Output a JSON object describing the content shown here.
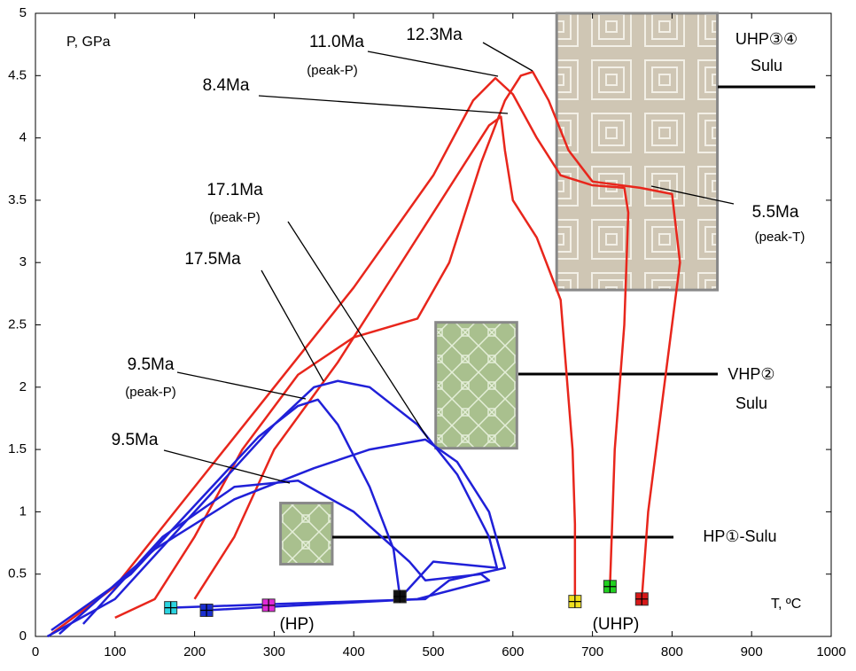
{
  "chart_data": {
    "type": "line",
    "ylabel": "P, GPa",
    "xlabel": "T, ºC",
    "xlim": [
      0,
      1000
    ],
    "xticks": [
      0,
      100,
      200,
      300,
      400,
      500,
      600,
      700,
      800,
      900,
      1000
    ],
    "ylim": [
      0,
      5
    ],
    "yticks": [
      0,
      0.5,
      1,
      1.5,
      2,
      2.5,
      3,
      3.5,
      4,
      4.5,
      5
    ],
    "series": [
      {
        "color": "#e8261c",
        "x": [
          20,
          100,
          200,
          300,
          400,
          500,
          550,
          578,
          600,
          630,
          660,
          700,
          740,
          745,
          740,
          728,
          722
        ],
        "values": [
          0.02,
          0.4,
          1.2,
          2.0,
          2.8,
          3.7,
          4.3,
          4.48,
          4.35,
          4.0,
          3.7,
          3.62,
          3.6,
          3.4,
          2.5,
          1.5,
          0.4
        ]
      },
      {
        "color": "#e8261c",
        "x": [
          100,
          150,
          200,
          260,
          330,
          400,
          480,
          520,
          560,
          590,
          610,
          625,
          645,
          670,
          700,
          760,
          800,
          810,
          790,
          770,
          762
        ],
        "values": [
          0.15,
          0.3,
          0.8,
          1.5,
          2.1,
          2.4,
          2.55,
          3.0,
          3.8,
          4.3,
          4.5,
          4.53,
          4.3,
          3.9,
          3.65,
          3.6,
          3.55,
          3.0,
          2.0,
          1.0,
          0.3
        ]
      },
      {
        "color": "#e8261c",
        "x": [
          200,
          250,
          300,
          380,
          450,
          520,
          570,
          585,
          590,
          600,
          630,
          660,
          675,
          678,
          678
        ],
        "values": [
          0.3,
          0.8,
          1.5,
          2.2,
          2.9,
          3.6,
          4.1,
          4.17,
          3.9,
          3.5,
          3.2,
          2.7,
          1.5,
          0.9,
          0.28
        ]
      },
      {
        "color": "#2020d8",
        "x": [
          15,
          100,
          200,
          300,
          350,
          380,
          420,
          480,
          530,
          570,
          580,
          500,
          460
        ],
        "values": [
          0.0,
          0.3,
          1.0,
          1.7,
          2.0,
          2.05,
          2.0,
          1.7,
          1.3,
          0.8,
          0.55,
          0.6,
          0.32
        ]
      },
      {
        "color": "#2020d8",
        "x": [
          20,
          120,
          200,
          280,
          330,
          355,
          380,
          420,
          450,
          458
        ],
        "values": [
          0.05,
          0.5,
          1.05,
          1.6,
          1.85,
          1.9,
          1.7,
          1.2,
          0.7,
          0.32
        ]
      },
      {
        "color": "#2020d8",
        "x": [
          30,
          150,
          250,
          350,
          420,
          490,
          530,
          570,
          590,
          520,
          490,
          300,
          170
        ],
        "values": [
          0.02,
          0.7,
          1.1,
          1.35,
          1.5,
          1.58,
          1.4,
          1.0,
          0.55,
          0.45,
          0.3,
          0.26,
          0.23
        ]
      },
      {
        "color": "#2020d8",
        "x": [
          60,
          160,
          250,
          330,
          400,
          470,
          490,
          560,
          570,
          480,
          215
        ],
        "values": [
          0.1,
          0.8,
          1.2,
          1.25,
          1.0,
          0.6,
          0.45,
          0.5,
          0.45,
          0.3,
          0.21
        ]
      }
    ],
    "samples": {
      "x": [
        170,
        215,
        293,
        458,
        678,
        722,
        762
      ],
      "values": [
        0.23,
        0.21,
        0.25,
        0.32,
        0.28,
        0.4,
        0.3
      ],
      "colors": [
        "#2ad4e0",
        "#1a2fd0",
        "#e02ad8",
        "#111111",
        "#f0e020",
        "#20d020",
        "#d81818"
      ]
    },
    "sample_groups": [
      "(HP)",
      "(UHP)"
    ],
    "regions": [
      {
        "label": [
          "UHP③④",
          "Sulu"
        ],
        "xlim": [
          655,
          857
        ],
        "ylim": [
          2.78,
          5
        ]
      },
      {
        "label": [
          "VHP②",
          "Sulu"
        ],
        "xlim": [
          503,
          605
        ],
        "ylim": [
          1.51,
          2.52
        ]
      },
      {
        "label": [
          "HP①-Sulu"
        ],
        "xlim": [
          308,
          373
        ],
        "ylim": [
          0.58,
          1.07
        ]
      }
    ],
    "annotations": [
      {
        "text": "12.3Ma"
      },
      {
        "text": "11.0Ma",
        "note": "(peak-P)"
      },
      {
        "text": "8.4Ma"
      },
      {
        "text": "17.1Ma",
        "note": "(peak-P)"
      },
      {
        "text": "17.5Ma"
      },
      {
        "text": "9.5Ma",
        "note": "(peak-P)"
      },
      {
        "text": "9.5Ma"
      },
      {
        "text": "5.5Ma",
        "note": "(peak-T)"
      }
    ]
  }
}
